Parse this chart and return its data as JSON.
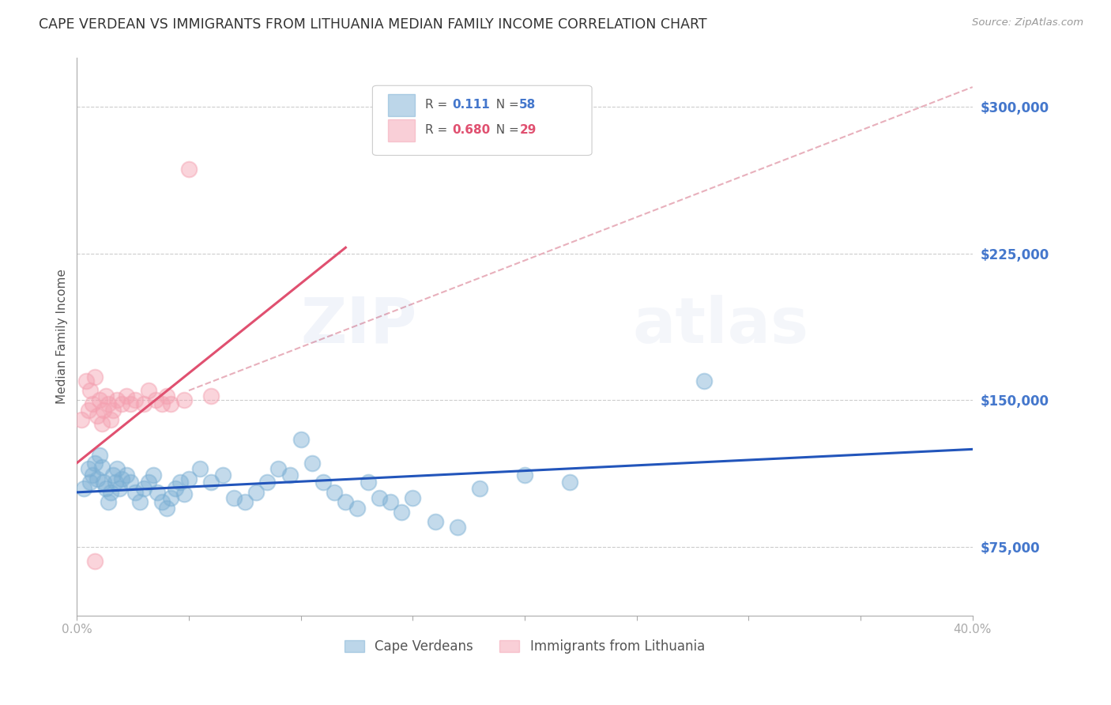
{
  "title": "CAPE VERDEAN VS IMMIGRANTS FROM LITHUANIA MEDIAN FAMILY INCOME CORRELATION CHART",
  "source": "Source: ZipAtlas.com",
  "ylabel": "Median Family Income",
  "xlim": [
    0.0,
    0.4
  ],
  "ylim": [
    40000,
    325000
  ],
  "xticks": [
    0.0,
    0.05,
    0.1,
    0.15,
    0.2,
    0.25,
    0.3,
    0.35,
    0.4
  ],
  "xticklabels": [
    "0.0%",
    "",
    "",
    "",
    "",
    "",
    "",
    "",
    "40.0%"
  ],
  "ytick_right_labels": [
    "$300,000",
    "$225,000",
    "$150,000",
    "$75,000"
  ],
  "ytick_right_values": [
    300000,
    225000,
    150000,
    75000
  ],
  "grid_color": "#cccccc",
  "background_color": "#ffffff",
  "blue_color": "#7bafd4",
  "pink_color": "#f4a0b0",
  "blue_line_color": "#2255bb",
  "pink_line_color": "#e05070",
  "dashed_line_color": "#e8b0bc",
  "legend_R_blue": "0.111",
  "legend_N_blue": "58",
  "legend_R_pink": "0.680",
  "legend_N_pink": "29",
  "legend_label_blue": "Cape Verdeans",
  "legend_label_pink": "Immigrants from Lithuania",
  "watermark_zip": "ZIP",
  "watermark_atlas": "atlas",
  "blue_scatter_x": [
    0.003,
    0.005,
    0.006,
    0.007,
    0.008,
    0.009,
    0.01,
    0.011,
    0.012,
    0.013,
    0.014,
    0.015,
    0.016,
    0.017,
    0.018,
    0.019,
    0.02,
    0.022,
    0.024,
    0.026,
    0.028,
    0.03,
    0.032,
    0.034,
    0.036,
    0.038,
    0.04,
    0.042,
    0.044,
    0.046,
    0.048,
    0.05,
    0.055,
    0.06,
    0.065,
    0.07,
    0.075,
    0.08,
    0.085,
    0.09,
    0.095,
    0.1,
    0.105,
    0.11,
    0.115,
    0.12,
    0.125,
    0.13,
    0.135,
    0.14,
    0.145,
    0.15,
    0.16,
    0.17,
    0.18,
    0.2,
    0.22,
    0.28
  ],
  "blue_scatter_y": [
    105000,
    115000,
    108000,
    112000,
    118000,
    110000,
    122000,
    116000,
    108000,
    105000,
    98000,
    103000,
    112000,
    108000,
    115000,
    105000,
    110000,
    112000,
    108000,
    103000,
    98000,
    105000,
    108000,
    112000,
    103000,
    98000,
    95000,
    100000,
    105000,
    108000,
    102000,
    110000,
    115000,
    108000,
    112000,
    100000,
    98000,
    103000,
    108000,
    115000,
    112000,
    130000,
    118000,
    108000,
    103000,
    98000,
    95000,
    108000,
    100000,
    98000,
    93000,
    100000,
    88000,
    85000,
    105000,
    112000,
    108000,
    160000
  ],
  "pink_scatter_x": [
    0.002,
    0.004,
    0.005,
    0.006,
    0.007,
    0.008,
    0.009,
    0.01,
    0.011,
    0.012,
    0.013,
    0.014,
    0.015,
    0.016,
    0.018,
    0.02,
    0.022,
    0.024,
    0.026,
    0.03,
    0.032,
    0.035,
    0.038,
    0.04,
    0.042,
    0.048,
    0.05,
    0.06,
    0.008
  ],
  "pink_scatter_y": [
    140000,
    160000,
    145000,
    155000,
    148000,
    162000,
    142000,
    150000,
    138000,
    145000,
    152000,
    148000,
    140000,
    145000,
    150000,
    148000,
    152000,
    148000,
    150000,
    148000,
    155000,
    150000,
    148000,
    152000,
    148000,
    150000,
    268000,
    152000,
    68000
  ],
  "blue_line_x": [
    0.0,
    0.4
  ],
  "blue_line_y": [
    103000,
    125000
  ],
  "pink_line_x": [
    0.0,
    0.12
  ],
  "pink_line_y": [
    118000,
    228000
  ],
  "dashed_line_x": [
    0.05,
    0.4
  ],
  "dashed_line_y": [
    155000,
    310000
  ]
}
